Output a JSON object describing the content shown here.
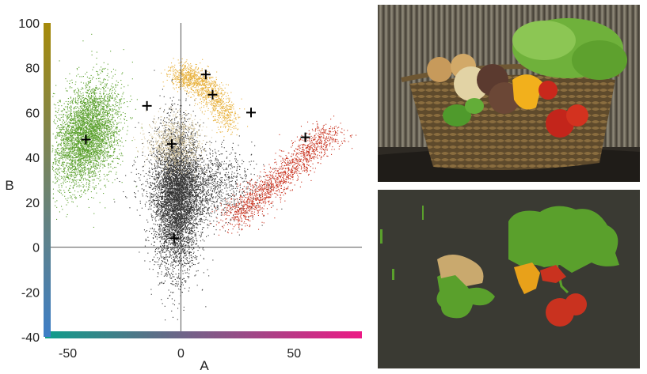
{
  "chart_data": {
    "type": "scatter",
    "title": "",
    "xlabel": "A",
    "ylabel": "B",
    "xlim": [
      -60,
      80
    ],
    "ylim": [
      -40,
      100
    ],
    "x_ticks": [
      -50,
      0,
      50
    ],
    "y_ticks": [
      -40,
      -20,
      0,
      20,
      40,
      60,
      80,
      100
    ],
    "grid": false,
    "axes_through_origin": true,
    "colorbar_x": {
      "from": "#0e9d8a",
      "to": "#ec1a85"
    },
    "colorbar_y": {
      "from": "#3d7ec6",
      "to": "#a68a0a"
    },
    "series": [
      {
        "color": "#333333",
        "center": [
          -2,
          22
        ],
        "spread": [
          5,
          16
        ],
        "count": 5200
      },
      {
        "color": "#333333",
        "center": [
          8,
          28
        ],
        "spread": [
          12,
          8
        ],
        "count": 1500
      },
      {
        "color": "#5aa02c",
        "center": [
          -42,
          50
        ],
        "spread": [
          6,
          11
        ],
        "count": 4200
      },
      {
        "color": "#d9c9a0",
        "center": [
          -3,
          47
        ],
        "spread": [
          6,
          6
        ],
        "count": 900
      },
      {
        "color": "#e8b13c",
        "center": [
          12,
          75
        ],
        "spread": [
          9,
          5
        ],
        "count": 1300
      },
      {
        "color": "#c9321f",
        "center": [
          44,
          38
        ],
        "spread": [
          15,
          14
        ],
        "count": 1600
      }
    ],
    "centroids": [
      {
        "x": -42,
        "y": 48
      },
      {
        "x": -15,
        "y": 63
      },
      {
        "x": -4,
        "y": 46
      },
      {
        "x": -3,
        "y": 4
      },
      {
        "x": 11,
        "y": 77
      },
      {
        "x": 14,
        "y": 68
      },
      {
        "x": 31,
        "y": 60
      },
      {
        "x": 55,
        "y": 49
      }
    ]
  },
  "images": {
    "top": {
      "kind": "photo-vegetable-basket"
    },
    "bottom": {
      "kind": "segmentation-map",
      "colors": {
        "background": "#3a3a33",
        "green": "#5aa02c",
        "tan": "#c9a96e",
        "orange": "#e8a11a",
        "red": "#c9321f"
      }
    }
  }
}
